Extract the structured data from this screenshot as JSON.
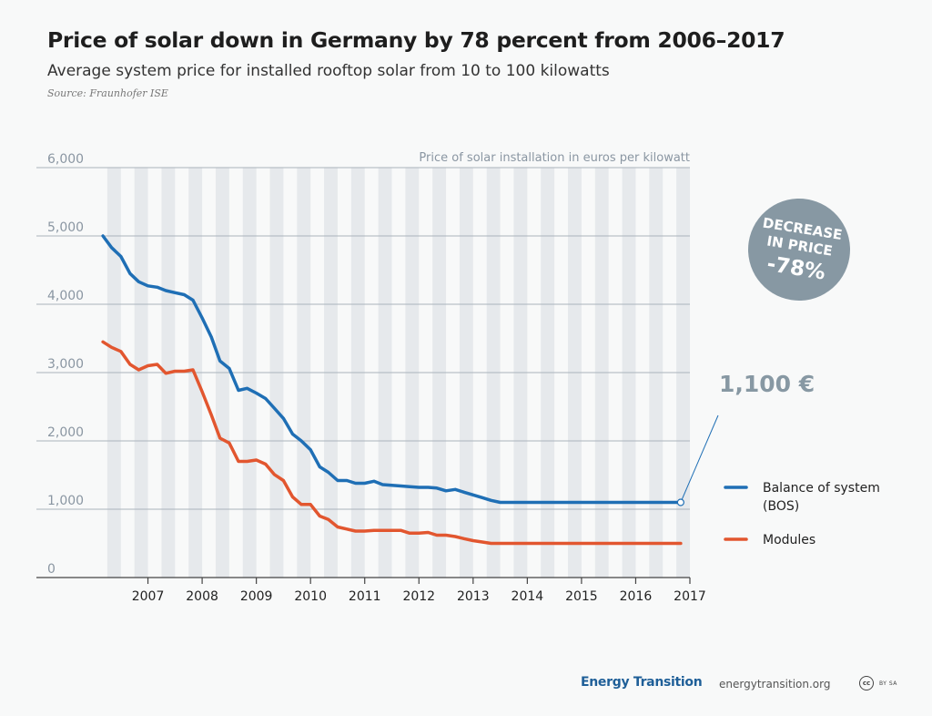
{
  "header": {
    "title": "Price of solar down in Germany by 78 percent from 2006–2017",
    "subtitle": "Average system price for installed rooftop solar from 10 to 100 kilowatts",
    "source": "Source: Fraunhofer ISE"
  },
  "badge": {
    "line1": "DECREASE",
    "line2": "IN PRICE",
    "value": "-78%",
    "color": "#8798a3"
  },
  "callout": {
    "text": "1,100 €"
  },
  "footer": {
    "brand": "Energy Transition",
    "url": "energytransition.org",
    "cc_mark": "cc",
    "license": "BY SA"
  },
  "chart_data": {
    "type": "line",
    "ylabel": "Price of solar installation in euros per kilowatt",
    "ylim": [
      0,
      6000
    ],
    "yticks": [
      0,
      1000,
      2000,
      3000,
      4000,
      5000,
      6000
    ],
    "ytick_labels": [
      "0",
      "1,000",
      "2,000",
      "3,000",
      "4,000",
      "5,000",
      "6,000"
    ],
    "xlim": [
      2006,
      2017
    ],
    "xticks": [
      2007,
      2008,
      2009,
      2010,
      2011,
      2012,
      2013,
      2014,
      2015,
      2016,
      2017
    ],
    "xtick_labels": [
      "2007",
      "2008",
      "2009",
      "2010",
      "2011",
      "2012",
      "2013",
      "2014",
      "2015",
      "2016",
      "2017"
    ],
    "grid": true,
    "legend_position": "right",
    "series": [
      {
        "name": "Balance of system (BOS)",
        "color": "#1f6fb5",
        "x": [
          2006.17,
          2006.33,
          2006.5,
          2006.67,
          2006.83,
          2007.0,
          2007.17,
          2007.33,
          2007.5,
          2007.67,
          2007.83,
          2008.0,
          2008.17,
          2008.33,
          2008.5,
          2008.67,
          2008.83,
          2009.0,
          2009.17,
          2009.33,
          2009.5,
          2009.67,
          2009.83,
          2010.0,
          2010.17,
          2010.33,
          2010.5,
          2010.67,
          2010.83,
          2011.0,
          2011.17,
          2011.33,
          2011.5,
          2011.67,
          2011.83,
          2012.0,
          2012.17,
          2012.33,
          2012.5,
          2012.67,
          2012.83,
          2013.0,
          2013.17,
          2013.33,
          2013.5,
          2013.67,
          2013.83,
          2014.0,
          2014.17,
          2014.33,
          2014.5,
          2014.67,
          2014.83,
          2015.0,
          2015.17,
          2015.33,
          2015.5,
          2015.67,
          2015.83,
          2016.0,
          2016.17,
          2016.33,
          2016.5,
          2016.67,
          2016.83
        ],
        "values": [
          5000,
          4830,
          4700,
          4450,
          4330,
          4270,
          4250,
          4200,
          4170,
          4140,
          4060,
          3800,
          3520,
          3170,
          3060,
          2740,
          2770,
          2700,
          2620,
          2480,
          2330,
          2100,
          2000,
          1870,
          1620,
          1540,
          1420,
          1420,
          1380,
          1380,
          1410,
          1360,
          1350,
          1340,
          1330,
          1320,
          1320,
          1310,
          1270,
          1290,
          1250,
          1210,
          1170,
          1130,
          1100,
          1100,
          1100,
          1100,
          1100,
          1100,
          1100,
          1100,
          1100,
          1100,
          1100,
          1100,
          1100,
          1100,
          1100,
          1100,
          1100,
          1100,
          1100,
          1100,
          1100
        ]
      },
      {
        "name": "Modules",
        "color": "#e2562f",
        "x": [
          2006.17,
          2006.33,
          2006.5,
          2006.67,
          2006.83,
          2007.0,
          2007.17,
          2007.33,
          2007.5,
          2007.67,
          2007.83,
          2008.0,
          2008.17,
          2008.33,
          2008.5,
          2008.67,
          2008.83,
          2009.0,
          2009.17,
          2009.33,
          2009.5,
          2009.67,
          2009.83,
          2010.0,
          2010.17,
          2010.33,
          2010.5,
          2010.67,
          2010.83,
          2011.0,
          2011.17,
          2011.33,
          2011.5,
          2011.67,
          2011.83,
          2012.0,
          2012.17,
          2012.33,
          2012.5,
          2012.67,
          2012.83,
          2013.0,
          2013.17,
          2013.33,
          2013.5,
          2013.67,
          2013.83,
          2014.0,
          2014.17,
          2014.33,
          2014.5,
          2014.67,
          2014.83,
          2015.0,
          2015.17,
          2015.33,
          2015.5,
          2015.67,
          2015.83,
          2016.0,
          2016.17,
          2016.33,
          2016.5,
          2016.67,
          2016.83
        ],
        "values": [
          3450,
          3370,
          3310,
          3120,
          3040,
          3100,
          3120,
          2990,
          3020,
          3020,
          3040,
          2720,
          2380,
          2040,
          1970,
          1700,
          1700,
          1720,
          1660,
          1510,
          1420,
          1180,
          1070,
          1070,
          900,
          850,
          740,
          710,
          680,
          680,
          690,
          690,
          690,
          690,
          650,
          650,
          660,
          620,
          620,
          600,
          570,
          540,
          520,
          500,
          500,
          500,
          500,
          500,
          500,
          500,
          500,
          500,
          500,
          500,
          500,
          500,
          500,
          500,
          500,
          500,
          500,
          500,
          500,
          500,
          500
        ]
      }
    ]
  }
}
